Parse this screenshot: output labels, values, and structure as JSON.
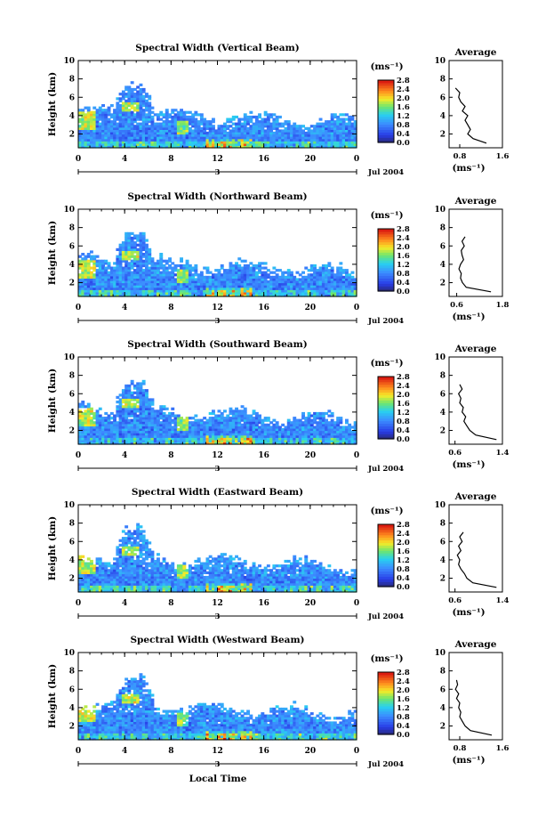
{
  "figure": {
    "shared_xlabel": "Local Time",
    "date_label": "Jul 2004",
    "day_marker": "3",
    "colorbar_unit_label": "(ms⁻¹)",
    "profile_title": "Average",
    "profile_xlabel": "(ms⁻¹)",
    "ylabel": "Height (km)",
    "colors": {
      "low": "#303080",
      "mid_blue": "#3c78ff",
      "cyan": "#30d0f0",
      "green": "#80e060",
      "yellow": "#f8e030",
      "orange": "#ff8020",
      "red": "#e01010"
    }
  },
  "chart_data": [
    {
      "type": "heatmap",
      "title": "Spectral Width (Vertical Beam)",
      "xlabel": "Local Time",
      "ylabel": "Height (km)",
      "x_ticks": [
        "0",
        "4",
        "8",
        "12",
        "16",
        "20",
        "0"
      ],
      "y_ticks": [
        "2",
        "4",
        "6",
        "8",
        "10"
      ],
      "xlim": [
        0,
        24
      ],
      "ylim": [
        0.5,
        10
      ],
      "colorbar": {
        "ticks": [
          "0.0",
          "0.4",
          "0.8",
          "1.2",
          "1.6",
          "2.0",
          "2.4",
          "2.8"
        ],
        "range": [
          0,
          2.8
        ]
      },
      "profile": {
        "title": "Average",
        "x_ticks": [
          "0.8",
          "1.6"
        ],
        "xlim": [
          0.6,
          1.6
        ],
        "y_ticks": [
          "2",
          "4",
          "6",
          "8",
          "10"
        ],
        "heights": [
          1.0,
          1.5,
          2.0,
          2.5,
          3.0,
          3.5,
          4.0,
          4.5,
          5.0,
          5.5,
          6.0,
          6.5,
          7.0
        ],
        "values": [
          1.3,
          1.05,
          0.95,
          1.0,
          0.95,
          0.9,
          0.95,
          0.85,
          0.9,
          0.82,
          0.78,
          0.8,
          0.72
        ]
      }
    },
    {
      "type": "heatmap",
      "title": "Spectral Width (Northward Beam)",
      "xlabel": "Local Time",
      "ylabel": "Height (km)",
      "x_ticks": [
        "0",
        "4",
        "8",
        "12",
        "16",
        "20",
        "0"
      ],
      "y_ticks": [
        "2",
        "4",
        "6",
        "8",
        "10"
      ],
      "xlim": [
        0,
        24
      ],
      "ylim": [
        0.5,
        10
      ],
      "colorbar": {
        "ticks": [
          "0.0",
          "0.4",
          "0.8",
          "1.2",
          "1.6",
          "2.0",
          "2.4",
          "2.8"
        ],
        "range": [
          0,
          2.8
        ]
      },
      "profile": {
        "title": "Average",
        "x_ticks": [
          "0.6",
          "1.8"
        ],
        "xlim": [
          0.4,
          1.8
        ],
        "y_ticks": [
          "2",
          "4",
          "6",
          "8",
          "10"
        ],
        "heights": [
          1.0,
          1.5,
          2.0,
          2.5,
          3.0,
          3.5,
          4.0,
          4.5,
          5.0,
          5.5,
          6.0,
          6.5,
          7.0
        ],
        "values": [
          1.5,
          0.85,
          0.75,
          0.7,
          0.72,
          0.66,
          0.7,
          0.78,
          0.74,
          0.72,
          0.8,
          0.74,
          0.82
        ]
      }
    },
    {
      "type": "heatmap",
      "title": "Spectral Width (Southward Beam)",
      "xlabel": "Local Time",
      "ylabel": "Height (km)",
      "x_ticks": [
        "0",
        "4",
        "8",
        "12",
        "16",
        "20",
        "0"
      ],
      "y_ticks": [
        "2",
        "4",
        "6",
        "8",
        "10"
      ],
      "xlim": [
        0,
        24
      ],
      "ylim": [
        0.5,
        10
      ],
      "colorbar": {
        "ticks": [
          "0.0",
          "0.4",
          "0.8",
          "1.2",
          "1.6",
          "2.0",
          "2.4",
          "2.8"
        ],
        "range": [
          0,
          2.8
        ]
      },
      "profile": {
        "title": "Average",
        "x_ticks": [
          "0.6",
          "1.4"
        ],
        "xlim": [
          0.5,
          1.4
        ],
        "y_ticks": [
          "2",
          "4",
          "6",
          "8",
          "10"
        ],
        "heights": [
          1.0,
          1.5,
          2.0,
          2.5,
          3.0,
          3.5,
          4.0,
          4.5,
          5.0,
          5.5,
          6.0,
          6.5,
          7.0
        ],
        "values": [
          1.3,
          0.95,
          0.85,
          0.8,
          0.75,
          0.78,
          0.72,
          0.74,
          0.68,
          0.7,
          0.66,
          0.72,
          0.68
        ]
      }
    },
    {
      "type": "heatmap",
      "title": "Spectral Width (Eastward Beam)",
      "xlabel": "Local Time",
      "ylabel": "Height (km)",
      "x_ticks": [
        "0",
        "4",
        "8",
        "12",
        "16",
        "20",
        "0"
      ],
      "y_ticks": [
        "2",
        "4",
        "6",
        "8",
        "10"
      ],
      "xlim": [
        0,
        24
      ],
      "ylim": [
        0.5,
        10
      ],
      "colorbar": {
        "ticks": [
          "0.0",
          "0.4",
          "0.8",
          "1.2",
          "1.6",
          "2.0",
          "2.4",
          "2.8"
        ],
        "range": [
          0,
          2.8
        ]
      },
      "profile": {
        "title": "Average",
        "x_ticks": [
          "0.6",
          "1.4"
        ],
        "xlim": [
          0.5,
          1.4
        ],
        "y_ticks": [
          "2",
          "4",
          "6",
          "8",
          "10"
        ],
        "heights": [
          1.0,
          1.5,
          2.0,
          2.5,
          3.0,
          3.5,
          4.0,
          4.5,
          5.0,
          5.5,
          6.0,
          6.5,
          7.0
        ],
        "values": [
          1.3,
          0.9,
          0.8,
          0.76,
          0.7,
          0.66,
          0.68,
          0.64,
          0.7,
          0.66,
          0.72,
          0.68,
          0.74
        ]
      }
    },
    {
      "type": "heatmap",
      "title": "Spectral Width (Westward Beam)",
      "xlabel": "Local Time",
      "ylabel": "Height (km)",
      "x_ticks": [
        "0",
        "4",
        "8",
        "12",
        "16",
        "20",
        "0"
      ],
      "y_ticks": [
        "2",
        "4",
        "6",
        "8",
        "10"
      ],
      "xlim": [
        0,
        24
      ],
      "ylim": [
        0.5,
        10
      ],
      "colorbar": {
        "ticks": [
          "0.0",
          "0.4",
          "0.8",
          "1.2",
          "1.6",
          "2.0",
          "2.4",
          "2.8"
        ],
        "range": [
          0,
          2.8
        ]
      },
      "profile": {
        "title": "Average",
        "x_ticks": [
          "0.8",
          "1.6"
        ],
        "xlim": [
          0.6,
          1.6
        ],
        "y_ticks": [
          "2",
          "4",
          "6",
          "8",
          "10"
        ],
        "heights": [
          1.0,
          1.5,
          2.0,
          2.5,
          3.0,
          3.5,
          4.0,
          4.5,
          5.0,
          5.5,
          6.0,
          6.5,
          7.0
        ],
        "values": [
          1.4,
          1.0,
          0.9,
          0.85,
          0.8,
          0.82,
          0.78,
          0.8,
          0.74,
          0.78,
          0.72,
          0.76,
          0.74
        ]
      }
    }
  ]
}
